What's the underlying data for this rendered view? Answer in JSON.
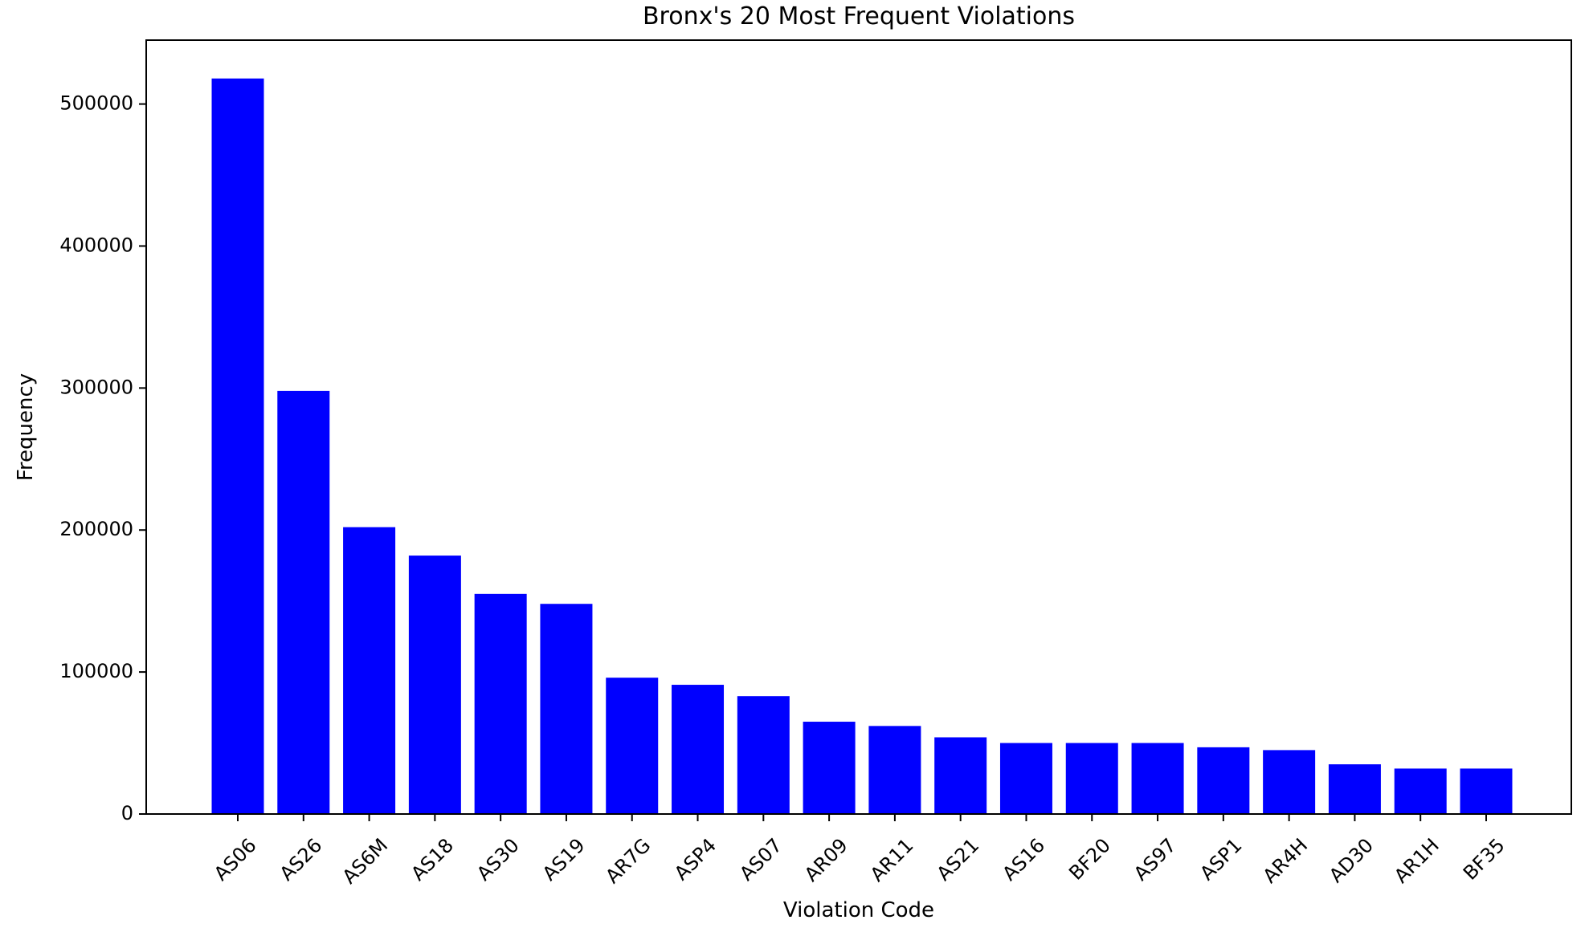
{
  "chart_data": {
    "type": "bar",
    "title": "Bronx's 20 Most Frequent Violations",
    "xlabel": "Violation Code",
    "ylabel": "Frequency",
    "categories": [
      "AS06",
      "AS26",
      "AS6M",
      "AS18",
      "AS30",
      "AS19",
      "AR7G",
      "ASP4",
      "AS07",
      "AR09",
      "AR11",
      "AS21",
      "AS16",
      "BF20",
      "AS97",
      "ASP1",
      "AR4H",
      "AD30",
      "AR1H",
      "BF35"
    ],
    "values": [
      518000,
      298000,
      202000,
      182000,
      155000,
      148000,
      96000,
      91000,
      83000,
      65000,
      62000,
      54000,
      50000,
      50000,
      50000,
      47000,
      45000,
      35000,
      32000,
      32000
    ],
    "ylim": [
      0,
      545000
    ],
    "yticks": [
      0,
      100000,
      200000,
      300000,
      400000,
      500000
    ],
    "ytick_labels": [
      "0",
      "100000",
      "200000",
      "300000",
      "400000",
      "500000"
    ],
    "bar_color": "#0000ff",
    "grid": false,
    "legend": "none"
  }
}
